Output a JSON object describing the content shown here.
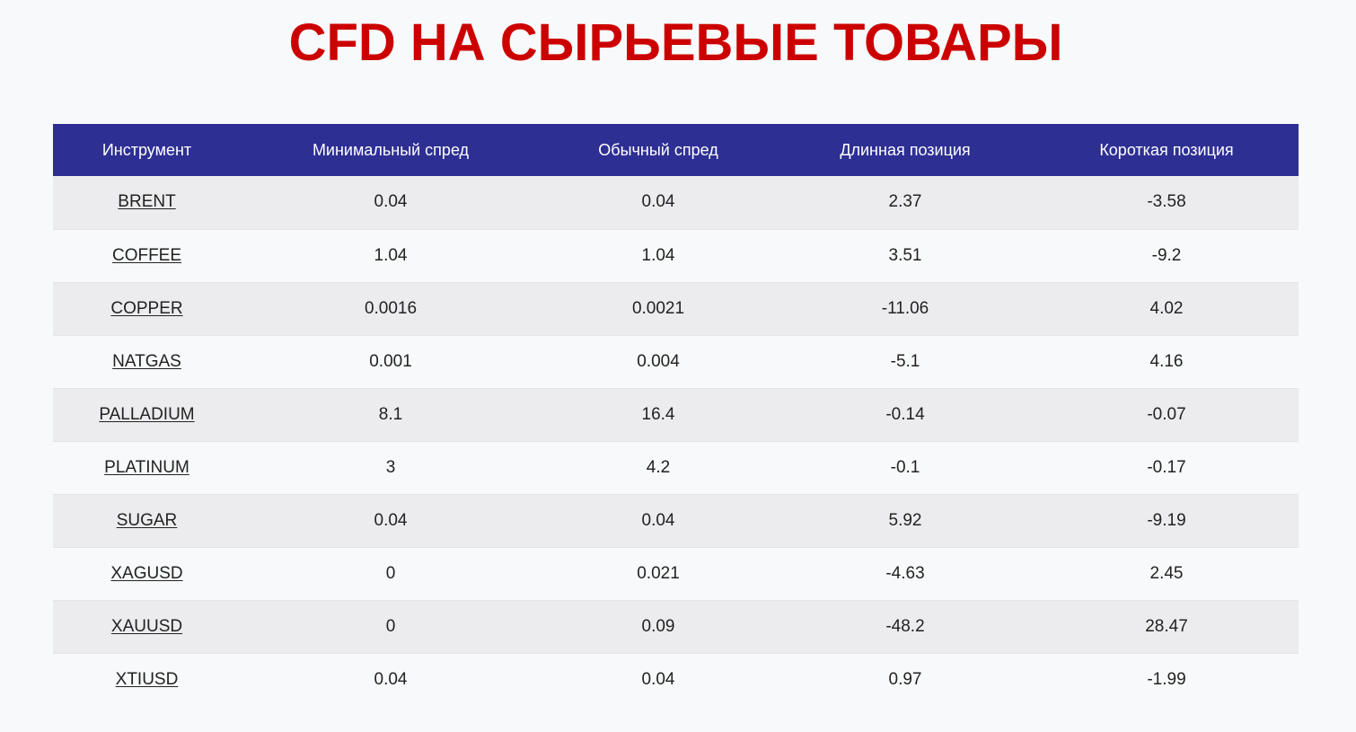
{
  "page": {
    "title": "CFD НА СЫРЬЕВЫЕ ТОВАРЫ"
  },
  "colors": {
    "title": "#cc0000",
    "header_bg": "#2e2f93",
    "row_odd": "#ececee",
    "row_even": "#f8f9fa"
  },
  "table": {
    "headers": [
      "Инструмент",
      "Минимальный спред",
      "Обычный спред",
      "Длинная позиция",
      "Короткая позиция"
    ],
    "rows": [
      {
        "instrument": "BRENT",
        "min_spread": "0.04",
        "typical_spread": "0.04",
        "long": "2.37",
        "short": "-3.58"
      },
      {
        "instrument": "COFFEE",
        "min_spread": "1.04",
        "typical_spread": "1.04",
        "long": "3.51",
        "short": "-9.2"
      },
      {
        "instrument": "COPPER",
        "min_spread": "0.0016",
        "typical_spread": "0.0021",
        "long": "-11.06",
        "short": "4.02"
      },
      {
        "instrument": "NATGAS",
        "min_spread": "0.001",
        "typical_spread": "0.004",
        "long": "-5.1",
        "short": "4.16"
      },
      {
        "instrument": "PALLADIUM",
        "min_spread": "8.1",
        "typical_spread": "16.4",
        "long": "-0.14",
        "short": "-0.07"
      },
      {
        "instrument": "PLATINUM",
        "min_spread": "3",
        "typical_spread": "4.2",
        "long": "-0.1",
        "short": "-0.17"
      },
      {
        "instrument": "SUGAR",
        "min_spread": "0.04",
        "typical_spread": "0.04",
        "long": "5.92",
        "short": "-9.19"
      },
      {
        "instrument": "XAGUSD",
        "min_spread": "0",
        "typical_spread": "0.021",
        "long": "-4.63",
        "short": "2.45"
      },
      {
        "instrument": "XAUUSD",
        "min_spread": "0",
        "typical_spread": "0.09",
        "long": "-48.2",
        "short": "28.47"
      },
      {
        "instrument": "XTIUSD",
        "min_spread": "0.04",
        "typical_spread": "0.04",
        "long": "0.97",
        "short": "-1.99"
      }
    ]
  }
}
